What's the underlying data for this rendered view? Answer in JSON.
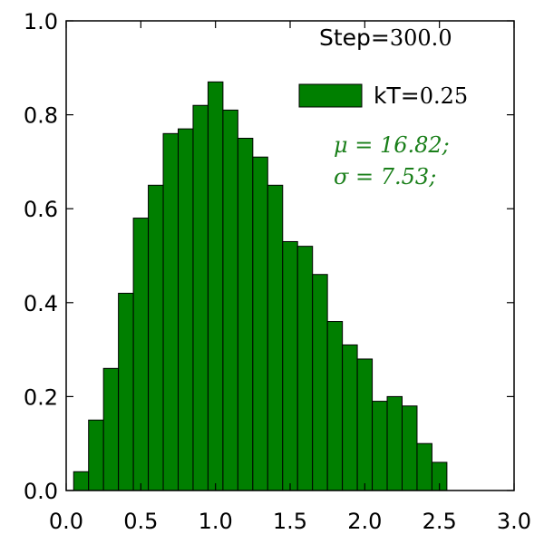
{
  "chart_data": {
    "type": "bar",
    "bin_width": 0.1,
    "bin_starts": [
      0.05,
      0.15,
      0.25,
      0.35,
      0.45,
      0.55,
      0.65,
      0.75,
      0.85,
      0.95,
      1.05,
      1.15,
      1.25,
      1.35,
      1.45,
      1.55,
      1.65,
      1.75,
      1.85,
      1.95,
      2.05,
      2.15,
      2.25,
      2.35,
      2.45
    ],
    "values": [
      0.04,
      0.15,
      0.26,
      0.42,
      0.58,
      0.65,
      0.76,
      0.77,
      0.82,
      0.87,
      0.81,
      0.75,
      0.71,
      0.65,
      0.53,
      0.52,
      0.46,
      0.36,
      0.31,
      0.28,
      0.19,
      0.2,
      0.18,
      0.1,
      0.06
    ],
    "title": "",
    "xlabel": "",
    "ylabel": "",
    "xlim": [
      0.0,
      3.0
    ],
    "ylim": [
      0.0,
      1.0
    ],
    "xticks": [
      "0.0",
      "0.5",
      "1.0",
      "1.5",
      "2.0",
      "2.5",
      "3.0"
    ],
    "yticks": [
      "0.0",
      "0.2",
      "0.4",
      "0.6",
      "0.8",
      "1.0"
    ],
    "grid": false,
    "legend": {
      "placement": "top-right",
      "label_prefix": "kT=",
      "label_value": "0.25"
    },
    "annotations": {
      "step_prefix": "Step=",
      "step_value": "300.0",
      "mu_text": "μ = 16.82;",
      "sigma_text": "σ = 7.53;"
    },
    "colors": {
      "bar_fill": "#007f00",
      "bar_edge": "#000000",
      "stat_text": "#1a7f1a",
      "axis": "#000000"
    }
  }
}
